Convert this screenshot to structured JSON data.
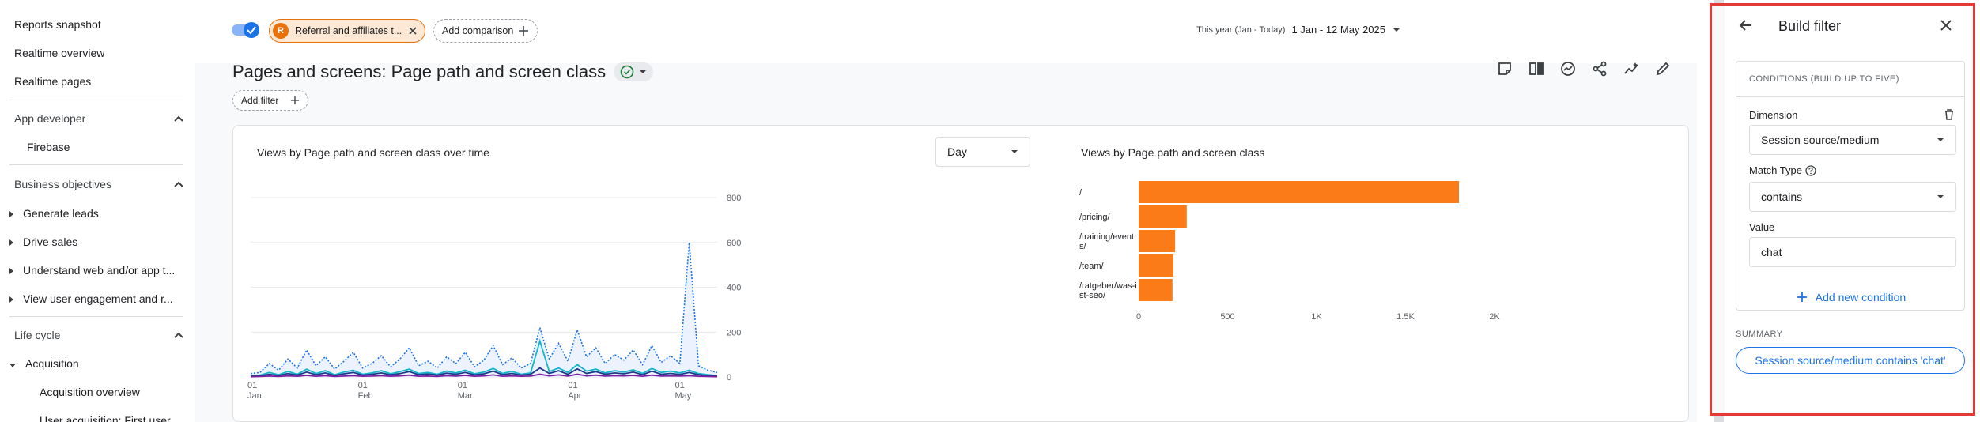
{
  "sidebar": {
    "reports_snapshot": "Reports snapshot",
    "realtime_overview": "Realtime overview",
    "realtime_pages": "Realtime pages",
    "app_developer": "App developer",
    "firebase": "Firebase",
    "business_objectives": "Business objectives",
    "generate_leads": "Generate leads",
    "drive_sales": "Drive sales",
    "understand_web": "Understand web and/or app t...",
    "view_engagement": "View user engagement and r...",
    "life_cycle": "Life cycle",
    "acquisition": "Acquisition",
    "acquisition_overview": "Acquisition overview",
    "user_acquisition": "User acquisition: First user..."
  },
  "topbar": {
    "segment_avatar": "R",
    "segment_label": "Referral and affiliates t...",
    "add_comparison": "Add comparison",
    "date_prefix": "This year (Jan - Today)",
    "date_value": "1 Jan - 12 May 2025"
  },
  "page": {
    "title": "Pages and screens: Page path and screen class",
    "add_filter": "Add filter"
  },
  "line_chart": {
    "title": "Views by Page path and screen class over time",
    "granularity": "Day",
    "y_ticks": [
      "800",
      "600",
      "400",
      "200",
      "0"
    ],
    "x_ticks": [
      {
        "day": "01",
        "month": "Jan"
      },
      {
        "day": "01",
        "month": "Feb"
      },
      {
        "day": "01",
        "month": "Mar"
      },
      {
        "day": "01",
        "month": "Apr"
      },
      {
        "day": "01",
        "month": "May"
      }
    ]
  },
  "chart_data": [
    {
      "type": "line",
      "title": "Views by Page path and screen class over time",
      "ylim": [
        0,
        800
      ],
      "x_range": [
        "2025-01-01",
        "2025-05-12"
      ],
      "series": [
        {
          "color": "#1a73e8",
          "style": "dotted",
          "values": [
            15,
            20,
            60,
            30,
            80,
            40,
            120,
            50,
            90,
            35,
            70,
            110,
            40,
            60,
            95,
            45,
            80,
            130,
            50,
            70,
            40,
            90,
            60,
            110,
            45,
            75,
            140,
            55,
            85,
            40,
            60,
            220,
            80,
            150,
            70,
            210,
            90,
            130,
            60,
            100,
            75,
            120,
            55,
            140,
            65,
            95,
            60,
            600,
            50,
            30,
            20
          ]
        },
        {
          "color": "#12b5cb",
          "style": "solid",
          "values": [
            5,
            8,
            20,
            10,
            25,
            12,
            35,
            15,
            28,
            10,
            22,
            30,
            12,
            18,
            28,
            14,
            24,
            35,
            15,
            20,
            12,
            26,
            18,
            30,
            14,
            22,
            38,
            16,
            25,
            12,
            18,
            160,
            24,
            40,
            20,
            55,
            26,
            35,
            18,
            28,
            22,
            32,
            16,
            38,
            20,
            26,
            18,
            30,
            15,
            10,
            6
          ]
        },
        {
          "color": "#1e3a8a",
          "style": "solid",
          "values": [
            3,
            5,
            12,
            6,
            15,
            8,
            22,
            10,
            18,
            6,
            14,
            20,
            8,
            12,
            18,
            9,
            15,
            24,
            10,
            13,
            8,
            17,
            12,
            20,
            9,
            14,
            26,
            10,
            16,
            8,
            12,
            40,
            16,
            28,
            12,
            36,
            16,
            24,
            12,
            18,
            14,
            22,
            10,
            26,
            12,
            16,
            11,
            20,
            10,
            6,
            4
          ]
        },
        {
          "color": "#7b1fa2",
          "style": "solid",
          "values": [
            1,
            2,
            4,
            2,
            5,
            3,
            7,
            3,
            6,
            2,
            4,
            6,
            3,
            4,
            6,
            3,
            5,
            8,
            3,
            4,
            2,
            6,
            4,
            7,
            3,
            5,
            9,
            3,
            5,
            3,
            4,
            12,
            5,
            9,
            4,
            12,
            5,
            8,
            4,
            6,
            5,
            7,
            3,
            8,
            4,
            5,
            4,
            6,
            3,
            2,
            1
          ]
        }
      ]
    },
    {
      "type": "bar",
      "orientation": "horizontal",
      "title": "Views by Page path and screen class",
      "categories": [
        "/",
        "/pricing/",
        "/training/events/",
        "/team/",
        "/ratgeber/was-ist-seo/"
      ],
      "values": [
        1800,
        270,
        205,
        195,
        190
      ],
      "xlim": [
        0,
        2000
      ],
      "x_ticks": [
        "0",
        "500",
        "1K",
        "1.5K",
        "2K"
      ],
      "color": "#fa7b17"
    }
  ],
  "bar_chart": {
    "title": "Views by Page path and screen class",
    "labels": [
      [
        "/"
      ],
      [
        "/pricing/"
      ],
      [
        "/training/event",
        "s/"
      ],
      [
        "/team/"
      ],
      [
        "/ratgeber/was-i",
        "st-seo/"
      ]
    ]
  },
  "filter_panel": {
    "title": "Build filter",
    "conditions_heading": "CONDITIONS (BUILD UP TO FIVE)",
    "dimension_label": "Dimension",
    "dimension_value": "Session source/medium",
    "match_type_label": "Match Type",
    "match_type_value": "contains",
    "value_label": "Value",
    "value_value": "chat",
    "add_condition": "Add new condition",
    "summary_label": "SUMMARY",
    "summary_value": "Session source/medium contains 'chat'"
  },
  "colors": {
    "accent": "#1a73e8",
    "segment": "#e8710a",
    "bar": "#fa7b17",
    "highlight_border": "#e53935"
  }
}
